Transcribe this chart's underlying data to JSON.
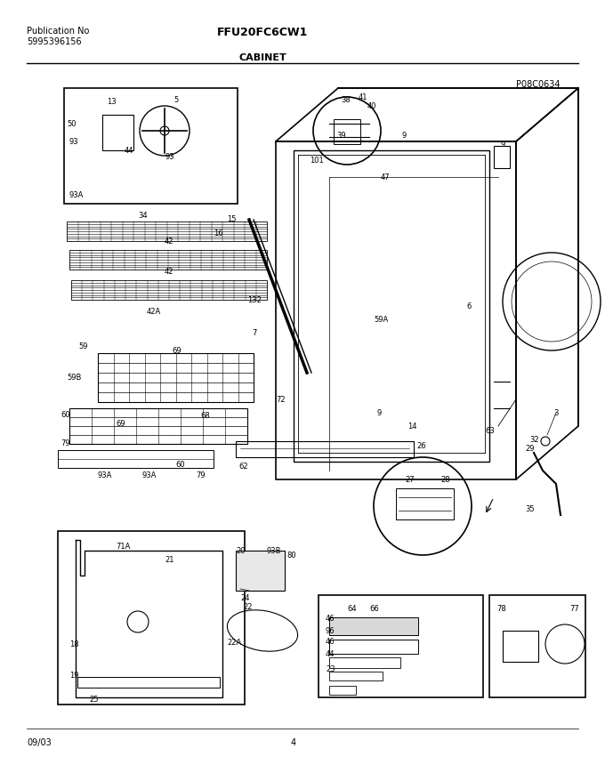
{
  "title_model": "FFU20FC6CW1",
  "pub_no_label": "Publication No",
  "pub_no": "5995396156",
  "section": "CABINET",
  "part_code": "P08C0634",
  "date": "09/03",
  "page": "4",
  "bg_color": "#ffffff",
  "border_color": "#000000",
  "text_color": "#000000",
  "fig_width": 6.8,
  "fig_height": 8.7,
  "dpi": 100
}
